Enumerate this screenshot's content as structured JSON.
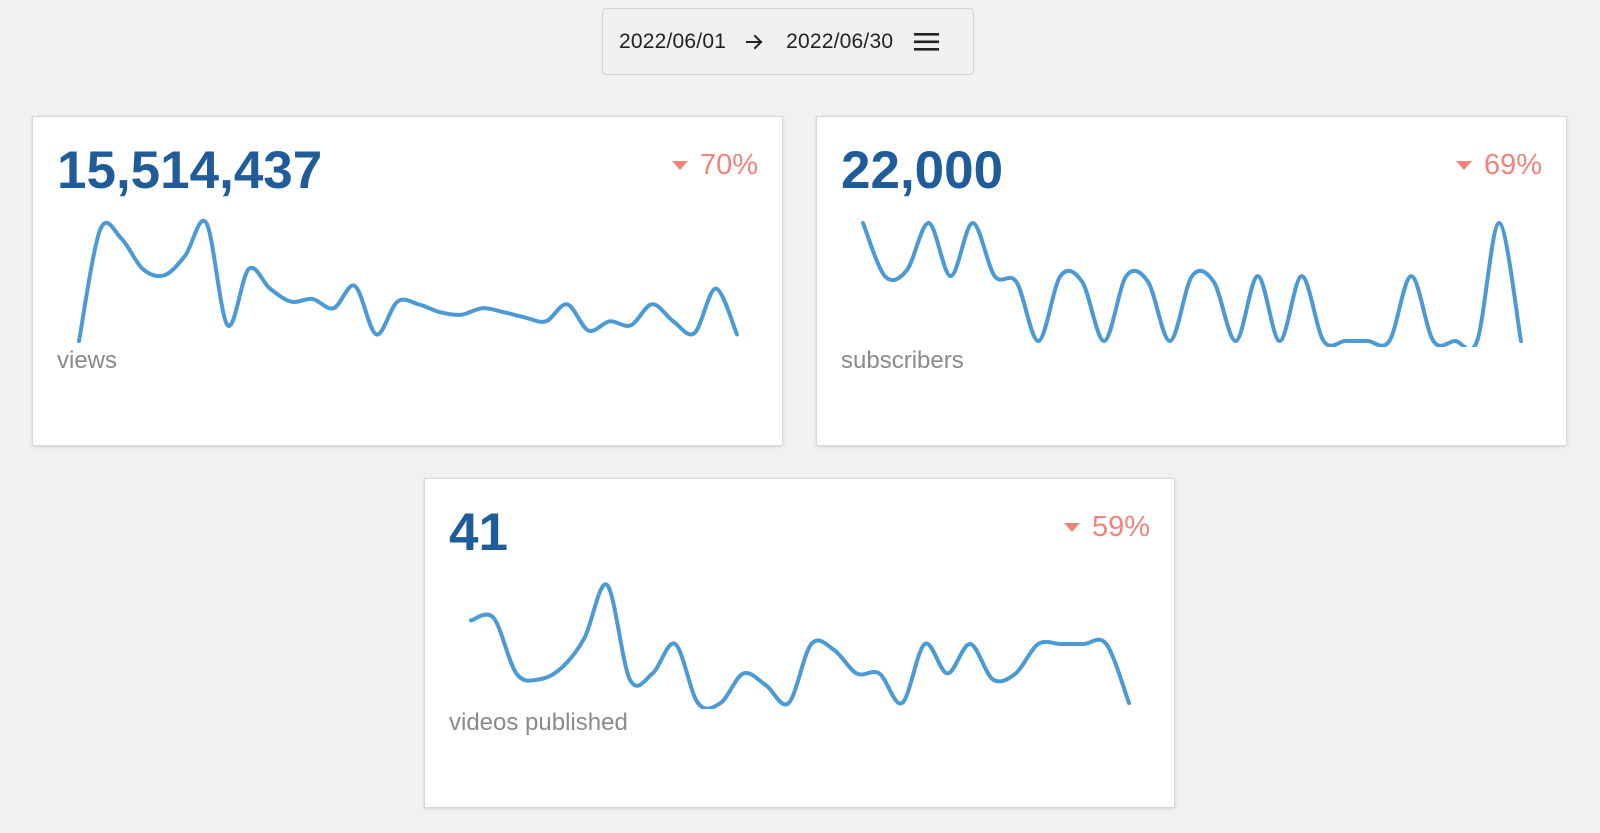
{
  "date_range": {
    "start": "2022/06/01",
    "end": "2022/06/30"
  },
  "icons": {
    "arrow": "arrow-right-icon",
    "menu": "hamburger-menu-icon"
  },
  "colors": {
    "value": "#1f5c99",
    "delta": "#f0837b",
    "line": "#4b9ad4",
    "label": "#8a8a8a"
  },
  "cards": [
    {
      "value": "15,514,437",
      "change": "70%",
      "direction": "down",
      "label": "views",
      "series": [
        0,
        85,
        78,
        55,
        50,
        65,
        90,
        12,
        55,
        40,
        30,
        32,
        25,
        42,
        5,
        30,
        28,
        22,
        20,
        25,
        22,
        18,
        15,
        28,
        8,
        15,
        12,
        28,
        15,
        6,
        40,
        5
      ]
    },
    {
      "value": "22,000",
      "change": "69%",
      "direction": "down",
      "label": "subscribers",
      "series": [
        100,
        55,
        60,
        100,
        55,
        100,
        55,
        50,
        0,
        55,
        50,
        0,
        55,
        50,
        0,
        55,
        50,
        0,
        55,
        0,
        55,
        0,
        0,
        0,
        0,
        55,
        0,
        0,
        0,
        100,
        0
      ]
    },
    {
      "value": "41",
      "change": "59%",
      "direction": "down",
      "label": "videos published",
      "series": [
        70,
        72,
        25,
        20,
        30,
        55,
        100,
        20,
        25,
        50,
        0,
        0,
        25,
        15,
        0,
        50,
        45,
        25,
        25,
        0,
        50,
        25,
        50,
        20,
        25,
        50,
        50,
        50,
        50,
        0
      ]
    }
  ]
}
